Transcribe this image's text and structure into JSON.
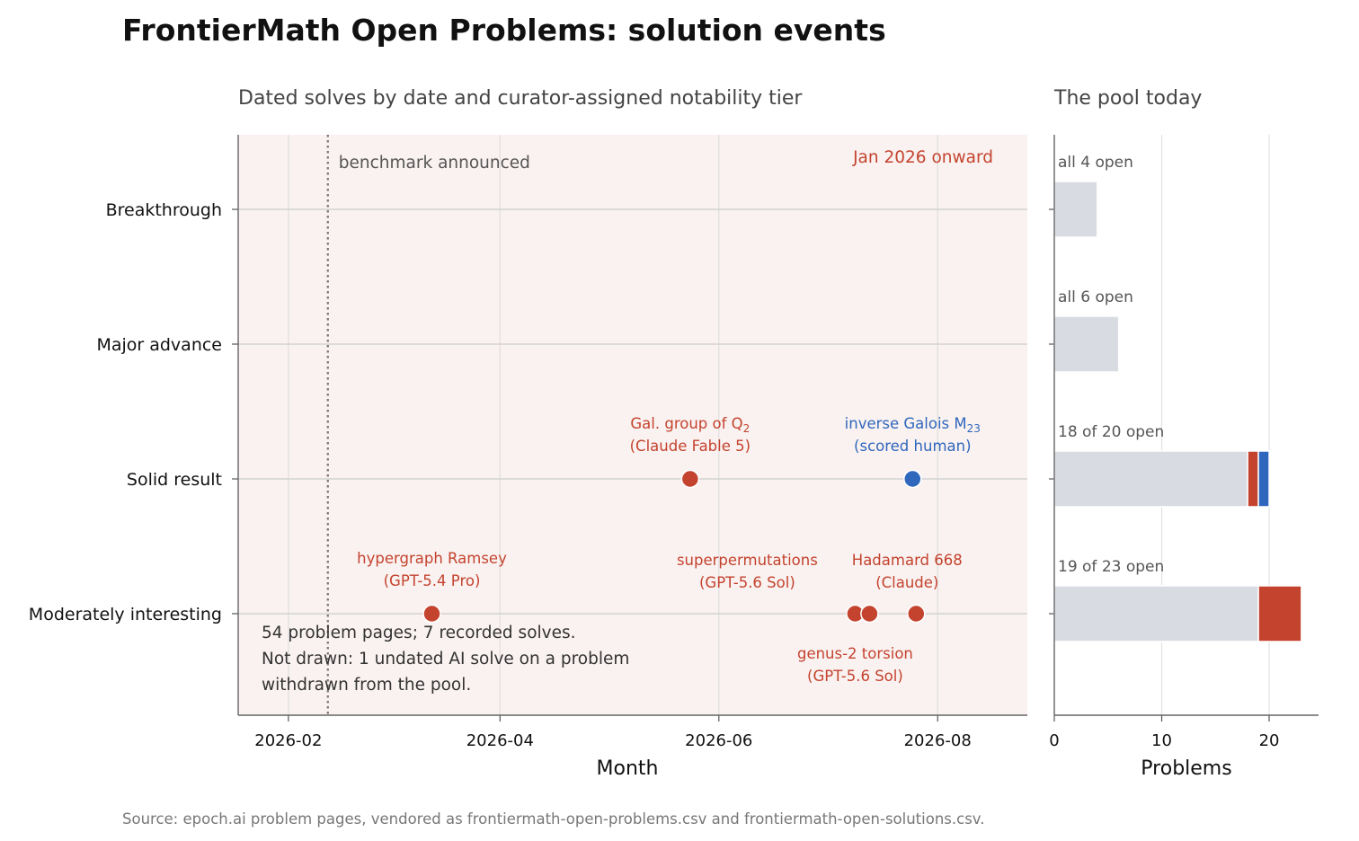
{
  "title": "FrontierMath Open Problems: solution events",
  "source": "Source: epoch.ai problem pages, vendored as frontiermath-open-problems.csv and frontiermath-open-solutions.csv.",
  "colors": {
    "ai": "#c4432f",
    "human": "#2f67bd",
    "open": "#d8dce2",
    "panel_bg": "#faf2f0"
  },
  "chart_data": [
    {
      "type": "scatter",
      "subtitle": "Dated solves by date and curator-assigned notability tier",
      "xlabel": "Month",
      "ylabel": "",
      "x_ticks": [
        "2026-02",
        "2026-04",
        "2026-06",
        "2026-08"
      ],
      "xlim": [
        "2026-01-18",
        "2026-08-26"
      ],
      "y_categories": [
        "Breakthrough",
        "Major advance",
        "Solid result",
        "Moderately interesting"
      ],
      "grid": true,
      "shaded_region_label": "Jan 2026 onward",
      "vline": {
        "date": "2026-02-12",
        "label": "benchmark announced"
      },
      "note": [
        "54 problem pages; 7 recorded solves.",
        "Not drawn: 1 undated AI solve on a problem",
        "withdrawn from the pool."
      ],
      "points": [
        {
          "date": "2026-03-13",
          "tier": "Moderately interesting",
          "solver": "ai",
          "label": [
            "hypergraph Ramsey",
            "(GPT-5.4 Pro)"
          ]
        },
        {
          "date": "2026-05-24",
          "tier": "Solid result",
          "solver": "ai",
          "label": [
            "Gal. group of Q",
            "(Claude Fable 5)"
          ],
          "label_sub": "2"
        },
        {
          "date": "2026-07-25",
          "tier": "Solid result",
          "solver": "human",
          "label": [
            "inverse Galois M",
            "(scored human)"
          ],
          "label_sub": "23"
        },
        {
          "date": "2026-07-09",
          "tier": "Moderately interesting",
          "solver": "ai",
          "label": [
            "genus-2 torsion",
            "(GPT-5.6 Sol)"
          ]
        },
        {
          "date": "2026-07-13",
          "tier": "Moderately interesting",
          "solver": "ai",
          "label": [
            "superpermutations",
            "(GPT-5.6 Sol)"
          ]
        },
        {
          "date": "2026-07-26",
          "tier": "Moderately interesting",
          "solver": "ai",
          "label": [
            "Hadamard 668",
            "(Claude)"
          ]
        }
      ]
    },
    {
      "type": "bar",
      "subtitle": "The pool today",
      "xlabel": "Problems",
      "x_ticks": [
        0,
        10,
        20
      ],
      "xlim": [
        0,
        24.6
      ],
      "grid": true,
      "categories": [
        "Breakthrough",
        "Major advance",
        "Solid result",
        "Moderately interesting"
      ],
      "series": [
        {
          "key": "open",
          "values": [
            4,
            6,
            18,
            19
          ]
        },
        {
          "key": "ai",
          "values": [
            0,
            0,
            1,
            4
          ]
        },
        {
          "key": "human",
          "values": [
            0,
            0,
            1,
            0
          ]
        }
      ],
      "bar_labels": [
        "all 4 open",
        "all 6 open",
        "18 of 20 open",
        "19 of 23 open"
      ]
    }
  ]
}
